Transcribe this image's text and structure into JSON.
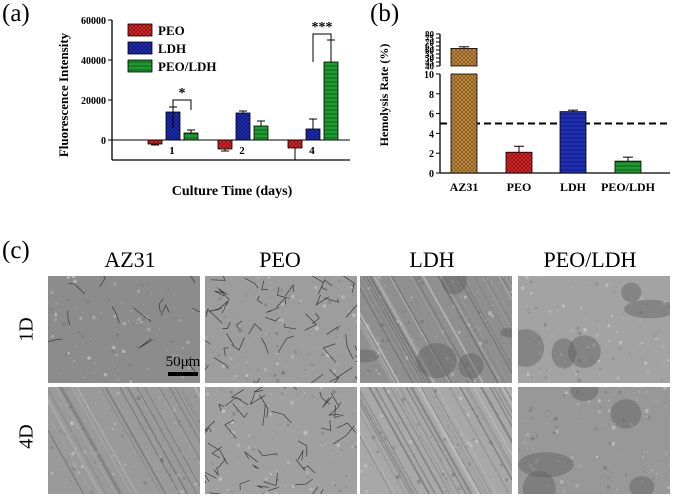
{
  "panels": {
    "a": "(a)",
    "b": "(b)",
    "c": "(c)"
  },
  "chart_data": [
    {
      "panel": "(a)",
      "type": "bar",
      "ylabel": "Fluorescence Intensity",
      "xlabel": "Culture Time (days)",
      "categories": [
        "1",
        "2",
        "4"
      ],
      "ylim": [
        -10000,
        60000
      ],
      "yticks": [
        "0",
        "20000",
        "40000",
        "60000"
      ],
      "series": [
        {
          "name": "PEO",
          "values": [
            -2000,
            -4500,
            -4000
          ],
          "errors": [
            500,
            1000,
            6000
          ],
          "color": "#d62728"
        },
        {
          "name": "LDH",
          "values": [
            14000,
            13500,
            5500
          ],
          "errors": [
            2500,
            1000,
            5000
          ],
          "color": "#1f2fb5"
        },
        {
          "name": "PEO/LDH",
          "values": [
            3500,
            7000,
            39000
          ],
          "errors": [
            1500,
            2500,
            11000
          ],
          "color": "#1f9a2e"
        }
      ],
      "annotations": [
        "*",
        "***"
      ],
      "legend": "top-left"
    },
    {
      "panel": "(b)",
      "type": "bar",
      "ylabel": "Hemolysis Rate (%)",
      "categories": [
        "AZ31",
        "PEO",
        "LDH",
        "PEO/LDH"
      ],
      "values": [
        62,
        2.1,
        6.2,
        1.2
      ],
      "errors": [
        2,
        0.6,
        0.15,
        0.4
      ],
      "colors": [
        "#c08a3e",
        "#d62728",
        "#1f2fb5",
        "#1f9a2e"
      ],
      "yticks_lower": [
        "0",
        "2",
        "4",
        "6",
        "8",
        "10"
      ],
      "yticks_upper": [
        "40",
        "45",
        "50",
        "55",
        "60",
        "65",
        "70",
        "75",
        "80"
      ],
      "reference_line": 5,
      "axis_break": [
        10,
        40
      ]
    }
  ],
  "sem": {
    "columns": [
      "AZ31",
      "PEO",
      "LDH",
      "PEO/LDH"
    ],
    "rows": [
      "1D",
      "4D"
    ],
    "scale_bar": "50μm"
  }
}
